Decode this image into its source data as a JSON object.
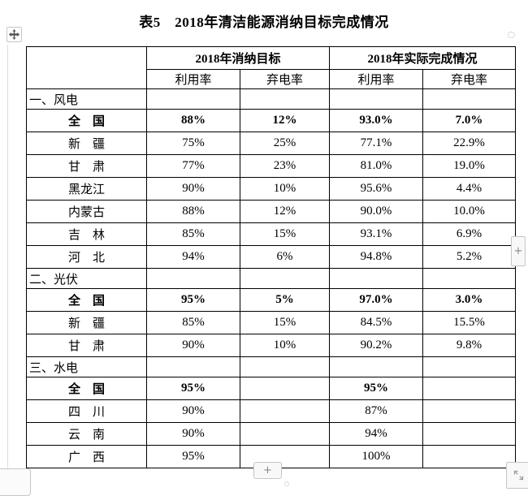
{
  "title": "表5　2018年清洁能源消纳目标完成情况",
  "table": {
    "column_groups": [
      {
        "label": "2018年消纳目标"
      },
      {
        "label": "2018年实际完成情况"
      }
    ],
    "sub_headers": [
      "利用率",
      "弃电率",
      "利用率",
      "弃电率"
    ],
    "rows": [
      {
        "label": "一、风电",
        "type": "section",
        "values": [
          "",
          "",
          "",
          ""
        ]
      },
      {
        "label": "全　国",
        "type": "total",
        "values": [
          "88%",
          "12%",
          "93.0%",
          "7.0%"
        ]
      },
      {
        "label": "新　疆",
        "type": "data",
        "values": [
          "75%",
          "25%",
          "77.1%",
          "22.9%"
        ]
      },
      {
        "label": "甘　肃",
        "type": "data",
        "values": [
          "77%",
          "23%",
          "81.0%",
          "19.0%"
        ]
      },
      {
        "label": "黑龙江",
        "type": "data",
        "values": [
          "90%",
          "10%",
          "95.6%",
          "4.4%"
        ]
      },
      {
        "label": "内蒙古",
        "type": "data",
        "values": [
          "88%",
          "12%",
          "90.0%",
          "10.0%"
        ]
      },
      {
        "label": "吉　林",
        "type": "data",
        "values": [
          "85%",
          "15%",
          "93.1%",
          "6.9%"
        ]
      },
      {
        "label": "河　北",
        "type": "data",
        "values": [
          "94%",
          "6%",
          "94.8%",
          "5.2%"
        ]
      },
      {
        "label": "二、光伏",
        "type": "section",
        "values": [
          "",
          "",
          "",
          ""
        ]
      },
      {
        "label": "全　国",
        "type": "total",
        "values": [
          "95%",
          "5%",
          "97.0%",
          "3.0%"
        ]
      },
      {
        "label": "新　疆",
        "type": "data",
        "values": [
          "85%",
          "15%",
          "84.5%",
          "15.5%"
        ]
      },
      {
        "label": "甘　肃",
        "type": "data",
        "values": [
          "90%",
          "10%",
          "90.2%",
          "9.8%"
        ]
      },
      {
        "label": "三、水电",
        "type": "section",
        "values": [
          "",
          "",
          "",
          ""
        ]
      },
      {
        "label": "全　国",
        "type": "total",
        "values": [
          "95%",
          "",
          "95%",
          ""
        ]
      },
      {
        "label": "四　川",
        "type": "data",
        "values": [
          "90%",
          "",
          "87%",
          ""
        ]
      },
      {
        "label": "云　南",
        "type": "data",
        "values": [
          "90%",
          "",
          "94%",
          ""
        ]
      },
      {
        "label": "广　西",
        "type": "data",
        "values": [
          "95%",
          "",
          "100%",
          ""
        ]
      }
    ]
  },
  "overlay": {
    "move_handle_icon": "move-cross-icon",
    "right_scroll_button_label": "+",
    "bottom_add_button_label": "+",
    "resize_handle_icon": "diagonal-resize-icon",
    "colors": {
      "table_border": "#000000",
      "ui_border": "#c6c6c6",
      "ui_background": "#f8f8f8",
      "ui_glyph": "#8a8a8a",
      "margin_line": "#dedede"
    }
  }
}
